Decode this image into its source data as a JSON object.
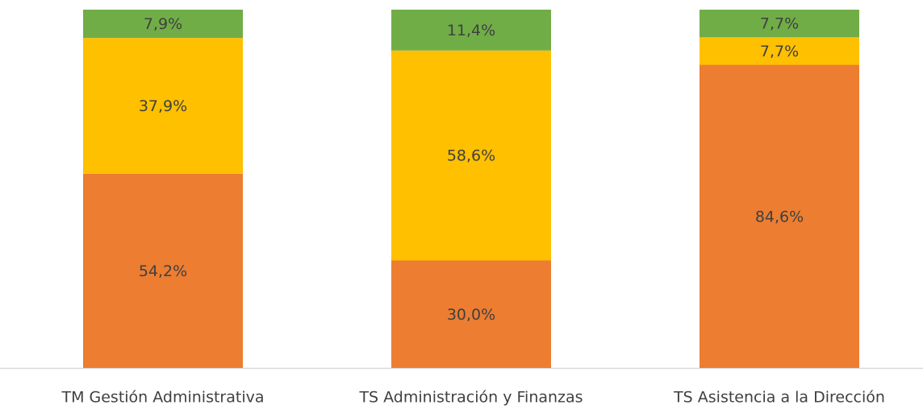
{
  "chart_data": {
    "type": "stacked_bar",
    "categories": [
      "TM Gestión Administrativa",
      "TS Administración y Finanzas",
      "TS Asistencia a la Dirección"
    ],
    "series": [
      {
        "color": "#ed7d31",
        "values": [
          54.2,
          30.0,
          84.6
        ],
        "value_labels": [
          "54,2%",
          "30,0%",
          "84,6%"
        ]
      },
      {
        "color": "#ffc000",
        "values": [
          37.9,
          58.6,
          7.7
        ],
        "value_labels": [
          "37,9%",
          "58,6%",
          "7,7%"
        ]
      },
      {
        "color": "#70ad47",
        "values": [
          7.9,
          11.4,
          7.7
        ],
        "value_labels": [
          "7,9%",
          "11,4%",
          "7,7%"
        ]
      }
    ]
  }
}
